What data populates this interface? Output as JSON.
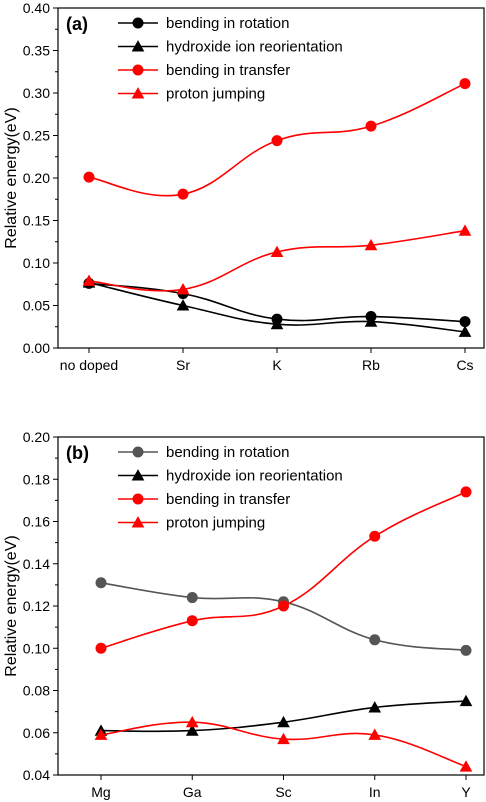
{
  "chart_data": [
    {
      "type": "line",
      "panel_label": "(a)",
      "categories": [
        "no doped",
        "Sr",
        "K",
        "Rb",
        "Cs"
      ],
      "ylabel": "Relative energy(eV)",
      "ylim": [
        0,
        0.4
      ],
      "yticks": [
        "0.00",
        "0.05",
        "0.10",
        "0.15",
        "0.20",
        "0.25",
        "0.30",
        "0.35",
        "0.40"
      ],
      "grid": false,
      "legend_position": "top-left",
      "series": [
        {
          "name": "bending in rotation",
          "color": "#000000",
          "marker": "circle",
          "values": [
            0.076,
            0.064,
            0.034,
            0.037,
            0.031
          ]
        },
        {
          "name": "hydroxide ion reorientation",
          "color": "#000000",
          "marker": "triangle",
          "values": [
            0.077,
            0.05,
            0.028,
            0.031,
            0.019
          ]
        },
        {
          "name": "bending in transfer",
          "color": "#ff0000",
          "marker": "circle",
          "values": [
            0.201,
            0.181,
            0.244,
            0.261,
            0.311
          ]
        },
        {
          "name": "proton jumping",
          "color": "#ff0000",
          "marker": "triangle",
          "values": [
            0.079,
            0.069,
            0.113,
            0.121,
            0.138
          ]
        }
      ]
    },
    {
      "type": "line",
      "panel_label": "(b)",
      "categories": [
        "Mg",
        "Ga",
        "Sc",
        "In",
        "Y"
      ],
      "ylabel": "Relative energy(eV)",
      "ylim": [
        0.04,
        0.2
      ],
      "yticks": [
        "0.04",
        "0.06",
        "0.08",
        "0.10",
        "0.12",
        "0.14",
        "0.16",
        "0.18",
        "0.20"
      ],
      "grid": false,
      "legend_position": "top-left",
      "series": [
        {
          "name": "bending in rotation",
          "color": "#555555",
          "marker": "circle",
          "values": [
            0.131,
            0.124,
            0.122,
            0.104,
            0.099
          ]
        },
        {
          "name": "hydroxide ion reorientation",
          "color": "#000000",
          "marker": "triangle",
          "values": [
            0.061,
            0.061,
            0.065,
            0.072,
            0.075
          ]
        },
        {
          "name": "bending in transfer",
          "color": "#ff0000",
          "marker": "circle",
          "values": [
            0.1,
            0.113,
            0.12,
            0.153,
            0.174
          ]
        },
        {
          "name": "proton jumping",
          "color": "#ff0000",
          "marker": "triangle",
          "values": [
            0.059,
            0.065,
            0.057,
            0.059,
            0.044
          ]
        }
      ]
    }
  ]
}
